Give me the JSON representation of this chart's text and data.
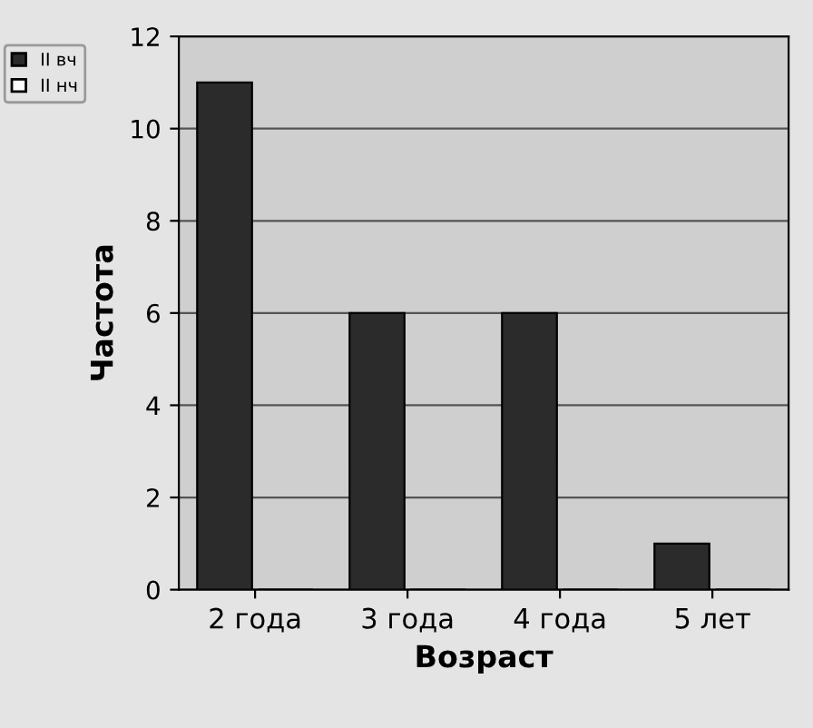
{
  "chart_data": {
    "type": "bar",
    "xlabel": "Возраст",
    "ylabel": "Частота",
    "categories": [
      "2 года",
      "3 года",
      "4 года",
      "5 лет"
    ],
    "series": [
      {
        "name": "II вч",
        "color": "#2b2b2b",
        "values": [
          11,
          6,
          6,
          1
        ]
      },
      {
        "name": "II нч",
        "color": "#ffffff",
        "values": [
          0,
          0,
          0,
          0
        ]
      }
    ],
    "ylim": [
      0,
      12
    ],
    "yticks": [
      0,
      2,
      4,
      6,
      8,
      10,
      12
    ],
    "grid": "y",
    "legend": "top left"
  }
}
